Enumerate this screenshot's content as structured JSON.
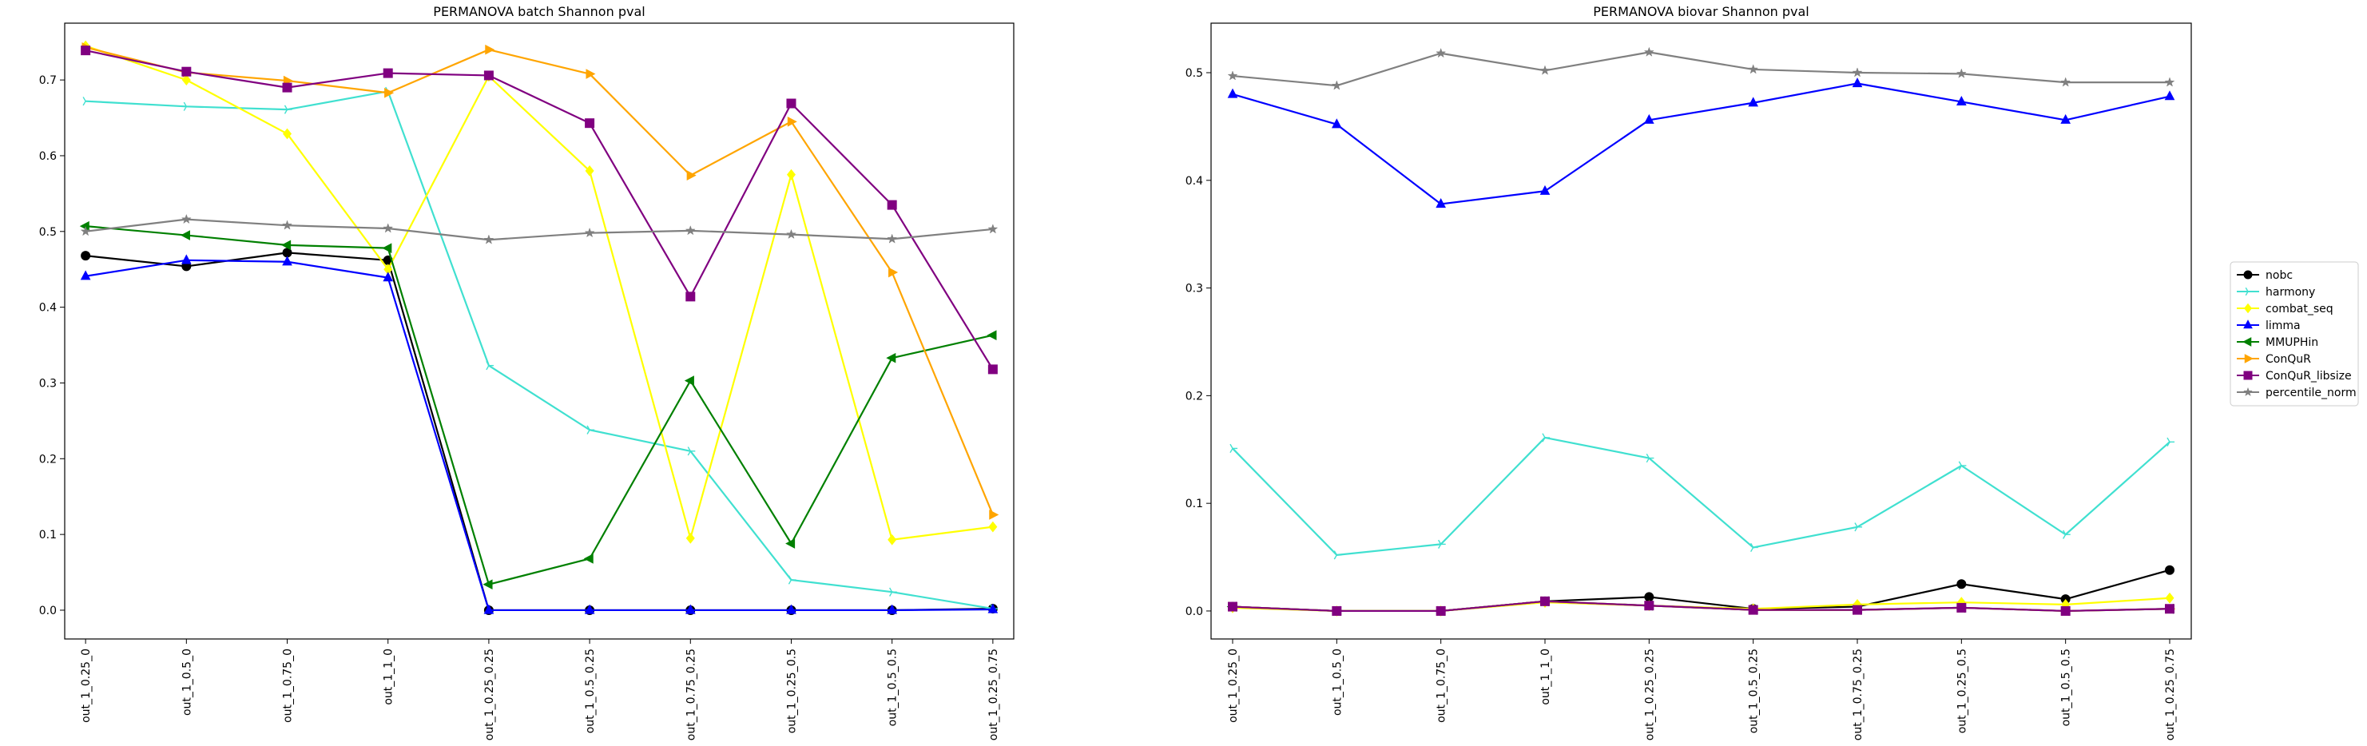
{
  "chart_data": [
    {
      "type": "line",
      "title": "PERMANOVA batch Shannon pval",
      "xlabel": "",
      "ylabel": "",
      "categories": [
        "out_1_0.25_0",
        "out_1_0.5_0",
        "out_1_0.75_0",
        "out_1_1_0",
        "out_1_0.25_0.25",
        "out_1_0.5_0.25",
        "out_1_0.75_0.25",
        "out_1_0.25_0.5",
        "out_1_0.5_0.5",
        "out_1_0.25_0.75"
      ],
      "ylim": [
        -0.038,
        0.775
      ],
      "yticks": [
        "0.0",
        "0.1",
        "0.2",
        "0.3",
        "0.4",
        "0.5",
        "0.6",
        "0.7"
      ],
      "grid": false,
      "series": [
        {
          "name": "nobc",
          "color": "#000000",
          "marker": "circle",
          "values": [
            0.468,
            0.454,
            0.472,
            0.462,
            0.0,
            0.0,
            0.0,
            0.0,
            0.0,
            0.002
          ]
        },
        {
          "name": "harmony",
          "color": "#40e0d0",
          "marker": "tri_right",
          "values": [
            0.672,
            0.665,
            0.661,
            0.685,
            0.323,
            0.238,
            0.21,
            0.04,
            0.024,
            0.002
          ]
        },
        {
          "name": "combat_seq",
          "color": "#ffff00",
          "marker": "diamond",
          "values": [
            0.745,
            0.7,
            0.629,
            0.45,
            0.705,
            0.58,
            0.095,
            0.575,
            0.093,
            0.11
          ]
        },
        {
          "name": "limma",
          "color": "#0000ff",
          "marker": "triangle_up",
          "values": [
            0.441,
            0.462,
            0.46,
            0.439,
            0.0,
            0.0,
            0.0,
            0.0,
            0.0,
            0.001
          ]
        },
        {
          "name": "MMUPHin",
          "color": "#008000",
          "marker": "triangle_left",
          "values": [
            0.507,
            0.495,
            0.482,
            0.478,
            0.034,
            0.068,
            0.303,
            0.088,
            0.333,
            0.363
          ]
        },
        {
          "name": "ConQuR",
          "color": "#ffa500",
          "marker": "triangle_right",
          "values": [
            0.743,
            0.71,
            0.699,
            0.683,
            0.74,
            0.708,
            0.574,
            0.645,
            0.446,
            0.126
          ]
        },
        {
          "name": "ConQuR_libsize",
          "color": "#800080",
          "marker": "square",
          "values": [
            0.739,
            0.711,
            0.69,
            0.709,
            0.706,
            0.643,
            0.414,
            0.669,
            0.535,
            0.318
          ]
        },
        {
          "name": "percentile_norm",
          "color": "#808080",
          "marker": "star",
          "values": [
            0.5,
            0.516,
            0.508,
            0.504,
            0.489,
            0.498,
            0.501,
            0.496,
            0.49,
            0.503
          ]
        }
      ]
    },
    {
      "type": "line",
      "title": "PERMANOVA biovar Shannon pval",
      "xlabel": "",
      "ylabel": "",
      "categories": [
        "out_1_0.25_0",
        "out_1_0.5_0",
        "out_1_0.75_0",
        "out_1_1_0",
        "out_1_0.25_0.25",
        "out_1_0.5_0.25",
        "out_1_0.75_0.25",
        "out_1_0.25_0.5",
        "out_1_0.5_0.5",
        "out_1_0.25_0.75"
      ],
      "ylim": [
        -0.026,
        0.546
      ],
      "yticks": [
        "0.0",
        "0.1",
        "0.2",
        "0.3",
        "0.4",
        "0.5"
      ],
      "grid": false,
      "series": [
        {
          "name": "nobc",
          "color": "#000000",
          "marker": "circle",
          "values": [
            0.004,
            0.0,
            0.0,
            0.009,
            0.013,
            0.002,
            0.004,
            0.025,
            0.011,
            0.038
          ]
        },
        {
          "name": "harmony",
          "color": "#40e0d0",
          "marker": "tri_right",
          "values": [
            0.151,
            0.052,
            0.062,
            0.161,
            0.142,
            0.059,
            0.078,
            0.135,
            0.071,
            0.157
          ]
        },
        {
          "name": "combat_seq",
          "color": "#ffff00",
          "marker": "diamond",
          "values": [
            0.003,
            0.0,
            0.0,
            0.008,
            0.005,
            0.002,
            0.006,
            0.008,
            0.006,
            0.012
          ]
        },
        {
          "name": "limma",
          "color": "#0000ff",
          "marker": "triangle_up",
          "values": [
            0.48,
            0.452,
            0.378,
            0.39,
            0.456,
            0.472,
            0.49,
            0.473,
            0.456,
            0.478
          ]
        },
        {
          "name": "MMUPHin",
          "color": "#008000",
          "marker": "triangle_left",
          "values": [
            0.004,
            0.0,
            0.0,
            0.009,
            0.005,
            0.001,
            0.001,
            0.003,
            0.0,
            0.002
          ]
        },
        {
          "name": "ConQuR",
          "color": "#ffa500",
          "marker": "triangle_right",
          "values": [
            0.004,
            0.0,
            0.0,
            0.009,
            0.005,
            0.001,
            0.001,
            0.003,
            0.0,
            0.002
          ]
        },
        {
          "name": "ConQuR_libsize",
          "color": "#800080",
          "marker": "square",
          "values": [
            0.004,
            0.0,
            0.0,
            0.009,
            0.005,
            0.001,
            0.001,
            0.003,
            0.0,
            0.002
          ]
        },
        {
          "name": "percentile_norm",
          "color": "#808080",
          "marker": "star",
          "values": [
            0.497,
            0.488,
            0.518,
            0.502,
            0.519,
            0.503,
            0.5,
            0.499,
            0.491,
            0.491
          ]
        }
      ]
    }
  ],
  "legend": {
    "placement": "right-center",
    "entries": [
      {
        "name": "nobc",
        "color": "#000000",
        "marker": "circle"
      },
      {
        "name": "harmony",
        "color": "#40e0d0",
        "marker": "tri_right"
      },
      {
        "name": "combat_seq",
        "color": "#ffff00",
        "marker": "diamond"
      },
      {
        "name": "limma",
        "color": "#0000ff",
        "marker": "triangle_up"
      },
      {
        "name": "MMUPHin",
        "color": "#008000",
        "marker": "triangle_left"
      },
      {
        "name": "ConQuR",
        "color": "#ffa500",
        "marker": "triangle_right"
      },
      {
        "name": "ConQuR_libsize",
        "color": "#800080",
        "marker": "square"
      },
      {
        "name": "percentile_norm",
        "color": "#808080",
        "marker": "star"
      }
    ]
  }
}
